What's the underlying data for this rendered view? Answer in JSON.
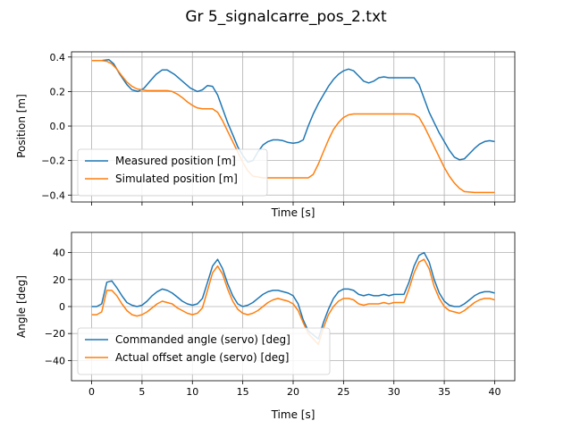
{
  "figure_title": "Gr 5_signalcarre_pos_2.txt",
  "colors": {
    "blue": "#1f77b4",
    "orange": "#ff7f0e",
    "grid": "#b0b0b0"
  },
  "chart_data": [
    {
      "type": "line",
      "xlabel": "Time [s]",
      "ylabel": "Position [m]",
      "xlim": [
        -2,
        42
      ],
      "ylim": [
        -0.44,
        0.43
      ],
      "xticks": [
        0,
        5,
        10,
        15,
        20,
        25,
        30,
        35,
        40
      ],
      "xtick_labels_visible": false,
      "yticks": [
        -0.4,
        -0.2,
        0.0,
        0.2,
        0.4
      ],
      "ytick_labels": [
        "−0.4",
        "−0.2",
        "0.0",
        "0.2",
        "0.4"
      ],
      "grid": true,
      "legend_position": "lower-left",
      "series": [
        {
          "name": "Measured position [m]",
          "color": "#1f77b4",
          "x": [
            0,
            1,
            1.7,
            2.2,
            2.8,
            3.5,
            4,
            4.6,
            5.2,
            5.8,
            6.4,
            7,
            7.5,
            8.2,
            9,
            9.8,
            10.5,
            11,
            11.5,
            12,
            12.5,
            13,
            13.5,
            14,
            14.5,
            15,
            15.5,
            16,
            16.5,
            17,
            17.5,
            18,
            18.5,
            19,
            19.5,
            20,
            20.5,
            21,
            21.5,
            22,
            22.5,
            23,
            23.5,
            24,
            24.5,
            25,
            25.5,
            26,
            26.5,
            27,
            27.5,
            28,
            28.5,
            29,
            29.5,
            30,
            30.5,
            31,
            31.5,
            32,
            32.5,
            33,
            33.5,
            34,
            34.5,
            35,
            35.5,
            36,
            36.5,
            37,
            37.5,
            38,
            38.5,
            39,
            39.5,
            40
          ],
          "y": [
            0.38,
            0.38,
            0.385,
            0.36,
            0.3,
            0.24,
            0.21,
            0.2,
            0.22,
            0.26,
            0.3,
            0.325,
            0.325,
            0.3,
            0.26,
            0.22,
            0.2,
            0.21,
            0.235,
            0.23,
            0.18,
            0.1,
            0.02,
            -0.05,
            -0.12,
            -0.17,
            -0.21,
            -0.2,
            -0.15,
            -0.11,
            -0.09,
            -0.08,
            -0.08,
            -0.085,
            -0.095,
            -0.1,
            -0.095,
            -0.08,
            0.0,
            0.07,
            0.13,
            0.18,
            0.23,
            0.27,
            0.3,
            0.32,
            0.33,
            0.32,
            0.29,
            0.26,
            0.25,
            0.26,
            0.28,
            0.285,
            0.28,
            0.28,
            0.28,
            0.28,
            0.28,
            0.28,
            0.24,
            0.16,
            0.08,
            0.02,
            -0.04,
            -0.09,
            -0.14,
            -0.18,
            -0.195,
            -0.19,
            -0.16,
            -0.13,
            -0.105,
            -0.09,
            -0.085,
            -0.09
          ]
        },
        {
          "name": "Simulated position [m]",
          "color": "#ff7f0e",
          "x": [
            0,
            1,
            1.5,
            2,
            2.5,
            3,
            3.5,
            4,
            4.5,
            5,
            5.5,
            6,
            6.5,
            7,
            7.5,
            8,
            8.5,
            9,
            9.5,
            10,
            10.5,
            11,
            11.5,
            12,
            12.5,
            13,
            13.5,
            14,
            14.5,
            15,
            15.5,
            16,
            17,
            18,
            19,
            20,
            21,
            21.5,
            22,
            22.5,
            23,
            23.5,
            24,
            24.5,
            25,
            25.5,
            26,
            26.5,
            27,
            28,
            29,
            30,
            30.5,
            31,
            31.5,
            32,
            32.5,
            33,
            33.5,
            34,
            34.5,
            35,
            35.5,
            36,
            36.5,
            37,
            38,
            39,
            40
          ],
          "y": [
            0.38,
            0.38,
            0.375,
            0.36,
            0.33,
            0.29,
            0.255,
            0.23,
            0.215,
            0.21,
            0.205,
            0.205,
            0.205,
            0.205,
            0.205,
            0.2,
            0.185,
            0.165,
            0.14,
            0.12,
            0.105,
            0.1,
            0.1,
            0.1,
            0.08,
            0.03,
            -0.03,
            -0.09,
            -0.15,
            -0.21,
            -0.26,
            -0.29,
            -0.3,
            -0.3,
            -0.3,
            -0.3,
            -0.3,
            -0.3,
            -0.28,
            -0.22,
            -0.15,
            -0.08,
            -0.02,
            0.02,
            0.05,
            0.065,
            0.07,
            0.07,
            0.07,
            0.07,
            0.07,
            0.07,
            0.07,
            0.07,
            0.07,
            0.068,
            0.05,
            0.0,
            -0.06,
            -0.12,
            -0.18,
            -0.24,
            -0.29,
            -0.33,
            -0.36,
            -0.38,
            -0.385,
            -0.385,
            -0.385
          ]
        }
      ]
    },
    {
      "type": "line",
      "xlabel": "Time [s]",
      "ylabel": "Angle [deg]",
      "xlim": [
        -2,
        42
      ],
      "ylim": [
        -55,
        55
      ],
      "xticks": [
        0,
        5,
        10,
        15,
        20,
        25,
        30,
        35,
        40
      ],
      "xtick_labels": [
        "0",
        "5",
        "10",
        "15",
        "20",
        "25",
        "30",
        "35",
        "40"
      ],
      "yticks": [
        -40,
        -20,
        0,
        20,
        40
      ],
      "ytick_labels": [
        "−40",
        "−20",
        "0",
        "20",
        "40"
      ],
      "grid": true,
      "legend_position": "lower-left",
      "series": [
        {
          "name": "Commanded angle (servo) [deg]",
          "color": "#1f77b4",
          "x": [
            0,
            0.5,
            1,
            1.5,
            2,
            2.5,
            3,
            3.5,
            4,
            4.5,
            5,
            5.5,
            6,
            6.5,
            7,
            7.5,
            8,
            8.5,
            9,
            9.5,
            10,
            10.5,
            11,
            11.5,
            12,
            12.5,
            13,
            13.5,
            14,
            14.5,
            15,
            15.5,
            16,
            16.5,
            17,
            17.5,
            18,
            18.5,
            19,
            19.5,
            20,
            20.5,
            21,
            21.5,
            22,
            22.5,
            23,
            23.5,
            24,
            24.5,
            25,
            25.5,
            26,
            26.5,
            27,
            27.5,
            28,
            28.5,
            29,
            29.5,
            30,
            30.5,
            31,
            31.5,
            32,
            32.5,
            33,
            33.5,
            34,
            34.5,
            35,
            35.5,
            36,
            36.5,
            37,
            37.5,
            38,
            38.5,
            39,
            39.5,
            40
          ],
          "y": [
            0,
            0,
            2,
            18,
            19,
            14,
            8,
            3,
            1,
            0,
            1,
            4,
            8,
            11,
            13,
            12,
            10,
            7,
            4,
            2,
            1,
            2,
            6,
            18,
            30,
            35,
            28,
            17,
            8,
            2,
            0,
            1,
            3,
            6,
            9,
            11,
            12,
            12,
            11,
            10,
            8,
            2,
            -10,
            -18,
            -21,
            -24,
            -12,
            -2,
            6,
            11,
            13,
            13,
            12,
            9,
            8,
            9,
            8,
            8,
            9,
            8,
            9,
            9,
            9,
            18,
            30,
            38,
            40,
            33,
            20,
            10,
            4,
            1,
            0,
            0,
            2,
            5,
            8,
            10,
            11,
            11,
            10
          ]
        },
        {
          "name": "Actual offset angle (servo) [deg]",
          "color": "#ff7f0e",
          "x": [
            0,
            0.5,
            1,
            1.5,
            2,
            2.5,
            3,
            3.5,
            4,
            4.5,
            5,
            5.5,
            6,
            6.5,
            7,
            7.5,
            8,
            8.5,
            9,
            9.5,
            10,
            10.5,
            11,
            11.5,
            12,
            12.5,
            13,
            13.5,
            14,
            14.5,
            15,
            15.5,
            16,
            16.5,
            17,
            17.5,
            18,
            18.5,
            19,
            19.5,
            20,
            20.5,
            21,
            21.5,
            22,
            22.5,
            23,
            23.5,
            24,
            24.5,
            25,
            25.5,
            26,
            26.5,
            27,
            27.5,
            28,
            28.5,
            29,
            29.5,
            30,
            30.5,
            31,
            31.5,
            32,
            32.5,
            33,
            33.5,
            34,
            34.5,
            35,
            35.5,
            36,
            36.5,
            37,
            37.5,
            38,
            38.5,
            39,
            39.5,
            40
          ],
          "y": [
            -6,
            -6,
            -4,
            12,
            12,
            8,
            2,
            -3,
            -6,
            -7,
            -6,
            -4,
            -1,
            2,
            4,
            3,
            2,
            -1,
            -3,
            -5,
            -6,
            -5,
            -1,
            12,
            25,
            30,
            24,
            13,
            4,
            -2,
            -5,
            -6,
            -5,
            -3,
            0,
            3,
            5,
            6,
            5,
            4,
            2,
            -3,
            -12,
            -20,
            -24,
            -28,
            -16,
            -6,
            0,
            4,
            6,
            6,
            5,
            2,
            1,
            2,
            2,
            2,
            3,
            2,
            3,
            3,
            3,
            13,
            25,
            33,
            35,
            28,
            15,
            6,
            0,
            -3,
            -4,
            -5,
            -3,
            0,
            3,
            5,
            6,
            6,
            5
          ]
        }
      ]
    }
  ]
}
